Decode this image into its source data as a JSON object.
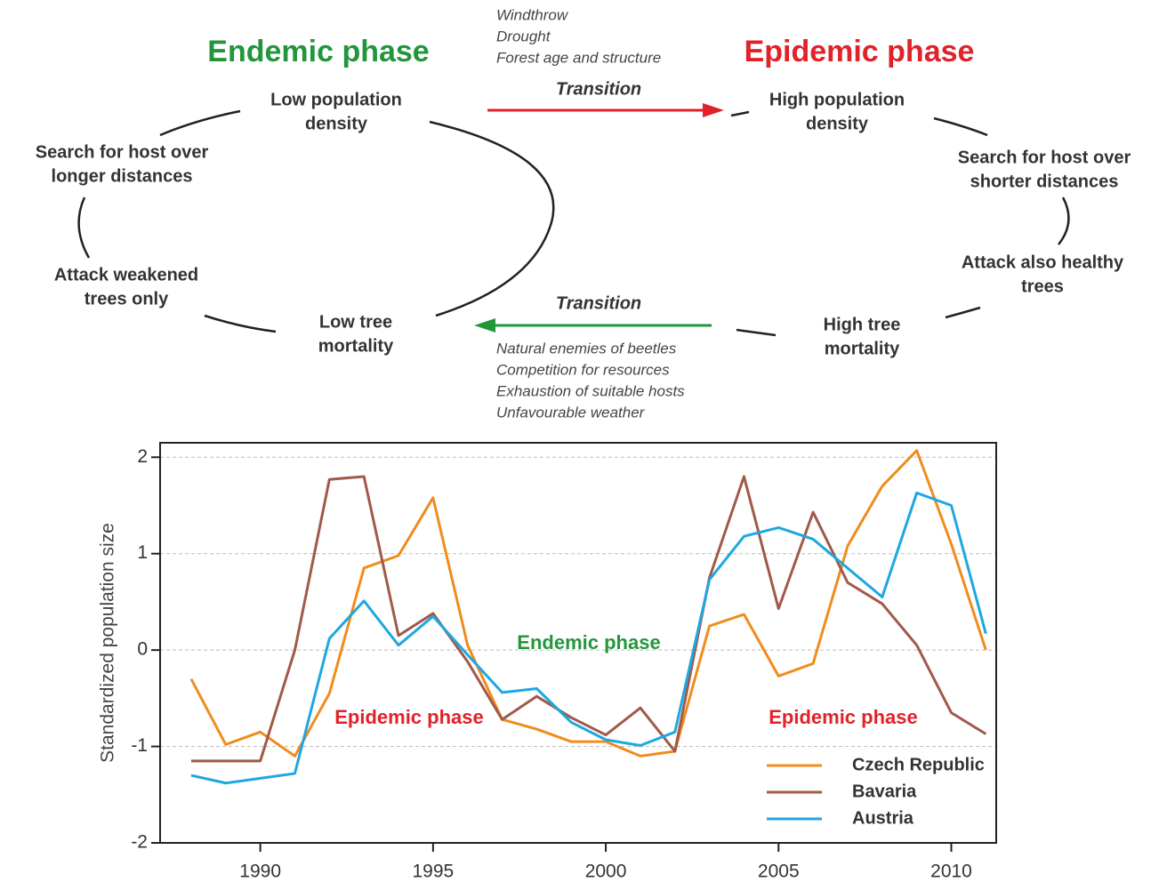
{
  "diagram": {
    "endemic_title": "Endemic phase",
    "epidemic_title": "Epidemic phase",
    "nodes": [
      [
        "Low population",
        "density"
      ],
      [
        "Search for host over",
        "longer distances"
      ],
      [
        "Attack weakened",
        "trees only"
      ],
      [
        "Low tree",
        "mortality"
      ],
      [
        "High population",
        "density"
      ],
      [
        "Search for host over",
        "shorter distances"
      ],
      [
        "Attack also healthy",
        "trees"
      ],
      [
        "High tree",
        "mortality"
      ]
    ],
    "transition_up": {
      "label": "Transition",
      "factors": [
        "Windthrow",
        "Drought",
        "Forest age and structure"
      ]
    },
    "transition_down": {
      "label": "Transition",
      "factors": [
        "Natural enemies of beetles",
        "Competition for resources",
        "Exhaustion of suitable hosts",
        "Unfavourable weather"
      ]
    }
  },
  "chart_data": {
    "type": "line",
    "y_label": "Standardized population size",
    "x": [
      1988,
      1989,
      1990,
      1991,
      1992,
      1993,
      1994,
      1995,
      1996,
      1997,
      1998,
      1999,
      2000,
      2001,
      2002,
      2003,
      2004,
      2005,
      2006,
      2007,
      2008,
      2009,
      2010,
      2011
    ],
    "series": [
      {
        "name": "Czech Republic",
        "color": "#f08c1e",
        "values": [
          -0.3,
          -0.98,
          -0.85,
          -1.1,
          -0.45,
          0.85,
          0.98,
          1.58,
          0.05,
          -0.72,
          -0.82,
          -0.95,
          -0.95,
          -1.1,
          -1.05,
          0.25,
          0.37,
          -0.27,
          -0.14,
          1.08,
          1.7,
          2.07,
          1.1,
          0.0
        ]
      },
      {
        "name": "Bavaria",
        "color": "#a0594a",
        "values": [
          -1.15,
          -1.15,
          -1.15,
          0.0,
          1.77,
          1.8,
          0.15,
          0.38,
          -0.12,
          -0.72,
          -0.48,
          -0.7,
          -0.88,
          -0.6,
          -1.05,
          0.75,
          1.8,
          0.43,
          1.43,
          0.7,
          0.48,
          0.05,
          -0.65,
          -0.87
        ]
      },
      {
        "name": "Austria",
        "color": "#1ea7e1",
        "values": [
          -1.3,
          -1.38,
          -1.33,
          -1.28,
          0.12,
          0.51,
          0.05,
          0.35,
          -0.05,
          -0.44,
          -0.4,
          -0.75,
          -0.93,
          -0.99,
          -0.85,
          0.73,
          1.18,
          1.27,
          1.15,
          0.85,
          0.55,
          1.63,
          1.5,
          0.17
        ]
      }
    ],
    "annotations": [
      {
        "text": "Endemic phase",
        "color": "#23963c"
      },
      {
        "text": "Epidemic phase",
        "color": "#e0222a"
      },
      {
        "text": "Epidemic phase",
        "color": "#e0222a"
      }
    ],
    "xlim": [
      1987.1,
      2011.3
    ],
    "xticks": [
      1990,
      1995,
      2000,
      2005,
      2010
    ],
    "ylim": [
      -2,
      2.15
    ],
    "yticks": [
      2,
      1,
      0,
      -1,
      -2
    ],
    "grid": true
  }
}
